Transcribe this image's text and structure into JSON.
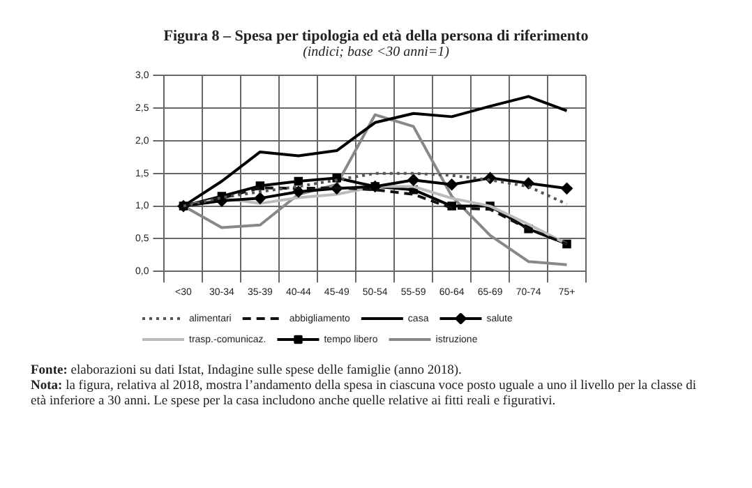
{
  "chart_data": {
    "type": "line",
    "title": "Figura 8 – Spesa per tipologia ed età della persona di riferimento",
    "subtitle": "(indici; base <30 anni=1)",
    "categories": [
      "<30",
      "30-34",
      "35-39",
      "40-44",
      "45-49",
      "50-54",
      "55-59",
      "60-64",
      "65-69",
      "70-74",
      "75+"
    ],
    "series": [
      {
        "name": "alimentari",
        "color": "#555555",
        "line_style": "dotted",
        "values": [
          1.0,
          1.13,
          1.22,
          1.3,
          1.4,
          1.5,
          1.5,
          1.47,
          1.4,
          1.3,
          1.03
        ]
      },
      {
        "name": "abbigliamento",
        "color": "#111111",
        "line_style": "dashed",
        "values": [
          1.0,
          1.12,
          1.28,
          1.27,
          1.28,
          1.25,
          1.18,
          0.97,
          0.95,
          0.65,
          0.42
        ]
      },
      {
        "name": "casa",
        "color": "#000000",
        "values": [
          1.0,
          1.38,
          1.83,
          1.77,
          1.85,
          2.28,
          2.42,
          2.37,
          2.53,
          2.68,
          2.46
        ]
      },
      {
        "name": "salute",
        "color": "#000000",
        "marker": "diamond",
        "values": [
          1.0,
          1.08,
          1.12,
          1.22,
          1.27,
          1.3,
          1.4,
          1.33,
          1.43,
          1.35,
          1.27
        ]
      },
      {
        "name": "trasp.-comunicaz.",
        "color": "#bbbbbb",
        "values": [
          1.0,
          1.12,
          1.04,
          1.13,
          1.18,
          1.3,
          1.3,
          1.12,
          1.0,
          0.72,
          0.42
        ]
      },
      {
        "name": "tempo libero",
        "color": "#000000",
        "marker": "square",
        "values": [
          1.0,
          1.15,
          1.31,
          1.38,
          1.43,
          1.3,
          1.25,
          1.0,
          1.0,
          0.65,
          0.42
        ]
      },
      {
        "name": "istruzione",
        "color": "#888888",
        "values": [
          1.0,
          0.67,
          0.71,
          1.18,
          1.33,
          2.4,
          2.22,
          1.15,
          0.55,
          0.15,
          0.1
        ]
      }
    ],
    "ylim": [
      0,
      3
    ],
    "yticks": [
      {
        "value": 0,
        "label": "0,0"
      },
      {
        "value": 0.5,
        "label": "0,5"
      },
      {
        "value": 1,
        "label": "1,0"
      },
      {
        "value": 1.5,
        "label": "1,5"
      },
      {
        "value": 2,
        "label": "2,0"
      },
      {
        "value": 2.5,
        "label": "2,5"
      },
      {
        "value": 3,
        "label": "3,0"
      }
    ],
    "grid": true,
    "legend": "bottom",
    "annotations": [
      "Fonte: elaborazioni su dati Istat, Indagine sulle spese delle famiglie (anno 2018).",
      "Nota: la figura, relativa al 2018, mostra l’andamento della spesa in ciascuna voce posto uguale a uno il livello per la classe di età inferiore a 30 anni. Le spese per la casa includono anche quelle relative ai fitti reali e figurativi."
    ]
  }
}
